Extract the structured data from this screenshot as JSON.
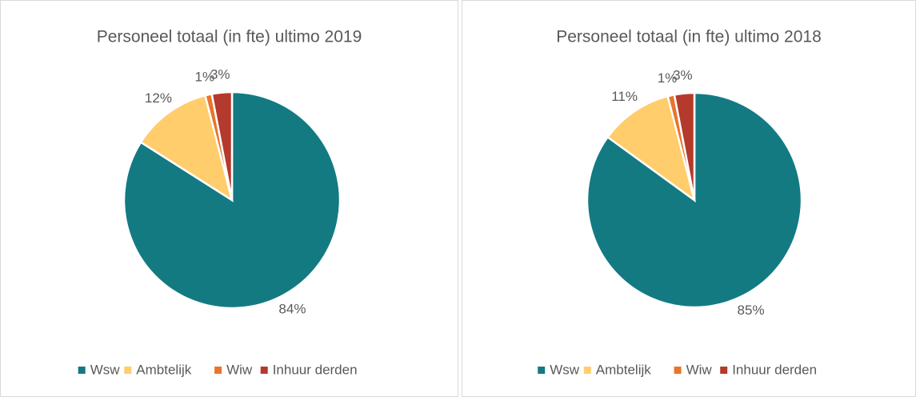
{
  "chart_data": [
    {
      "type": "pie",
      "title": "Personeel totaal (in fte) ultimo 2019",
      "categories": [
        "Wsw",
        "Ambtelijk",
        "Wiw",
        "Inhuur derden"
      ],
      "values": [
        84,
        12,
        1,
        3
      ],
      "value_labels": [
        "84%",
        "12%",
        "1%",
        "3%"
      ],
      "colors": [
        "#137a82",
        "#ffcd6b",
        "#e8742d",
        "#b33a2c"
      ],
      "legend": "bottom"
    },
    {
      "type": "pie",
      "title": "Personeel totaal (in fte) ultimo 2018",
      "categories": [
        "Wsw",
        "Ambtelijk",
        "Wiw",
        "Inhuur derden"
      ],
      "values": [
        85,
        11,
        1,
        3
      ],
      "value_labels": [
        "85%",
        "11%",
        "1%",
        "3%"
      ],
      "colors": [
        "#137a82",
        "#ffcd6b",
        "#e8742d",
        "#b33a2c"
      ],
      "legend": "bottom"
    }
  ]
}
